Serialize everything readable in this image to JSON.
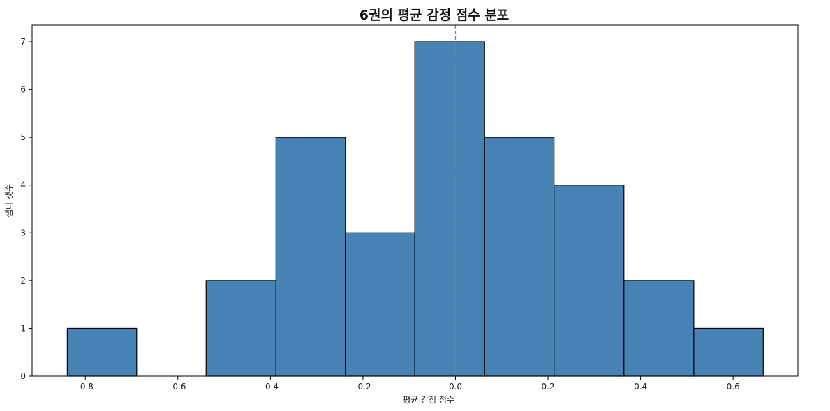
{
  "chart_data": {
    "type": "bar",
    "title": "6권의 평균 감정 점수 분포",
    "xlabel": "평균 감정 점수",
    "ylabel": "챕터 갯수",
    "bin_edges": [
      -0.839,
      -0.689,
      -0.539,
      -0.388,
      -0.238,
      -0.088,
      0.063,
      0.213,
      0.364,
      0.515,
      0.665
    ],
    "values": [
      1,
      0,
      2,
      5,
      3,
      7,
      5,
      4,
      2,
      1
    ],
    "xlim": [
      -0.915,
      0.74
    ],
    "ylim": [
      0,
      7.35
    ],
    "xticks": [
      -0.8,
      -0.6,
      -0.4,
      -0.2,
      0.0,
      0.2,
      0.4,
      0.6
    ],
    "xtick_labels": [
      "-0.8",
      "-0.6",
      "-0.4",
      "-0.2",
      "0.0",
      "0.2",
      "0.4",
      "0.6"
    ],
    "yticks": [
      0,
      1,
      2,
      3,
      4,
      5,
      6,
      7
    ],
    "ytick_labels": [
      "0",
      "1",
      "2",
      "3",
      "4",
      "5",
      "6",
      "7"
    ],
    "reference_line_x": 0.0,
    "bar_color": "#4682b4",
    "edge_color": "#000000",
    "reference_line_color": "#808080",
    "grid": false
  }
}
